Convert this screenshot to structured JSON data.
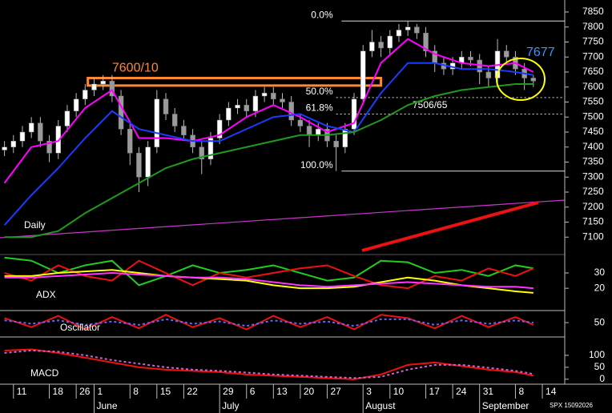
{
  "chart_data": {
    "type": "candlestick",
    "open": [
      7390,
      7400,
      7420,
      7450,
      7480,
      7420,
      7380,
      7470,
      7520,
      7560,
      7590,
      7610,
      7620,
      7570,
      7460,
      7380,
      7300,
      7400,
      7560,
      7510,
      7470,
      7440,
      7400,
      7360,
      7430,
      7490,
      7530,
      7540,
      7520,
      7570,
      7580,
      7560,
      7550,
      7490,
      7470,
      7440,
      7460,
      7420,
      7400,
      7460,
      7560,
      7720,
      7750,
      7730,
      7770,
      7790,
      7800,
      7780,
      7720,
      7680,
      7660,
      7680,
      7700,
      7690,
      7650,
      7630,
      7720,
      7700,
      7660,
      7630
    ],
    "high": [
      7420,
      7440,
      7470,
      7500,
      7500,
      7440,
      7490,
      7540,
      7580,
      7610,
      7630,
      7640,
      7640,
      7590,
      7480,
      7400,
      7420,
      7590,
      7580,
      7530,
      7490,
      7460,
      7420,
      7450,
      7510,
      7550,
      7560,
      7560,
      7590,
      7600,
      7600,
      7580,
      7570,
      7510,
      7490,
      7480,
      7480,
      7440,
      7480,
      7580,
      7740,
      7790,
      7770,
      7790,
      7810,
      7820,
      7810,
      7800,
      7740,
      7700,
      7700,
      7720,
      7720,
      7710,
      7670,
      7760,
      7740,
      7720,
      7680,
      7640
    ],
    "low": [
      7370,
      7380,
      7400,
      7430,
      7400,
      7350,
      7360,
      7450,
      7500,
      7540,
      7570,
      7590,
      7550,
      7440,
      7340,
      7250,
      7270,
      7380,
      7490,
      7450,
      7420,
      7380,
      7310,
      7340,
      7410,
      7470,
      7510,
      7500,
      7500,
      7550,
      7540,
      7530,
      7470,
      7450,
      7400,
      7420,
      7400,
      7320,
      7380,
      7440,
      7540,
      7700,
      7700,
      7710,
      7750,
      7770,
      7760,
      7700,
      7650,
      7640,
      7640,
      7660,
      7670,
      7610,
      7600,
      7610,
      7680,
      7640,
      7590,
      7600
    ],
    "close": [
      7400,
      7420,
      7450,
      7480,
      7420,
      7380,
      7470,
      7520,
      7560,
      7590,
      7610,
      7620,
      7570,
      7460,
      7380,
      7300,
      7400,
      7560,
      7510,
      7470,
      7440,
      7400,
      7360,
      7430,
      7490,
      7530,
      7540,
      7520,
      7570,
      7580,
      7560,
      7550,
      7490,
      7470,
      7440,
      7460,
      7420,
      7400,
      7460,
      7560,
      7720,
      7750,
      7730,
      7770,
      7790,
      7800,
      7780,
      7720,
      7680,
      7660,
      7680,
      7700,
      7690,
      7650,
      7630,
      7720,
      7700,
      7660,
      7630,
      7620
    ],
    "up_color": "#ffffff",
    "down_color": "#9a9a9a",
    "xlim": [
      -0.5,
      62.5
    ],
    "xticks": [
      {
        "value": 1,
        "label": "11"
      },
      {
        "value": 5,
        "label": "18"
      },
      {
        "value": 8,
        "label": "26"
      },
      {
        "value": 10,
        "label": "1"
      },
      {
        "value": 14,
        "label": "8"
      },
      {
        "value": 17,
        "label": "15"
      },
      {
        "value": 20,
        "label": "22"
      },
      {
        "value": 24,
        "label": "29"
      },
      {
        "value": 27,
        "label": "6"
      },
      {
        "value": 30,
        "label": "13"
      },
      {
        "value": 33,
        "label": "20"
      },
      {
        "value": 36,
        "label": "27"
      },
      {
        "value": 40,
        "label": "3"
      },
      {
        "value": 43,
        "label": "10"
      },
      {
        "value": 47,
        "label": "17"
      },
      {
        "value": 50,
        "label": "24"
      },
      {
        "value": 53,
        "label": "31"
      },
      {
        "value": 57,
        "label": "8"
      },
      {
        "value": 60,
        "label": "14"
      }
    ],
    "months": [
      {
        "value": 10,
        "label": "June"
      },
      {
        "value": 24,
        "label": "July"
      },
      {
        "value": 40,
        "label": "August"
      },
      {
        "value": 53,
        "label": "September"
      }
    ],
    "ylim": [
      7050,
      7890
    ],
    "yticks": [
      7100,
      7150,
      7200,
      7250,
      7300,
      7350,
      7400,
      7450,
      7500,
      7550,
      7600,
      7650,
      7700,
      7750,
      7800,
      7850
    ],
    "line_x": [
      0,
      3,
      6,
      9,
      12,
      15,
      18,
      21,
      24,
      27,
      30,
      33,
      36,
      39,
      42,
      45,
      48,
      51,
      54,
      57,
      59
    ],
    "lines": [
      {
        "color": "#ff00ff",
        "values": [
          7280,
          7400,
          7420,
          7530,
          7590,
          7430,
          7430,
          7420,
          7440,
          7500,
          7540,
          7500,
          7450,
          7480,
          7680,
          7760,
          7710,
          7680,
          7670,
          7680,
          7650
        ]
      },
      {
        "color": "#1a3cff",
        "values": [
          7140,
          7240,
          7330,
          7430,
          7520,
          7460,
          7440,
          7420,
          7420,
          7460,
          7500,
          7510,
          7470,
          7450,
          7580,
          7680,
          7680,
          7660,
          7660,
          7650,
          7640
        ]
      },
      {
        "color": "#1f9a1f",
        "values": [
          7100,
          7100,
          7120,
          7180,
          7230,
          7280,
          7330,
          7360,
          7380,
          7400,
          7420,
          7440,
          7440,
          7450,
          7490,
          7540,
          7570,
          7590,
          7600,
          7610,
          7610
        ]
      }
    ],
    "fib": [
      {
        "label": "0.0%",
        "value": 7820
      },
      {
        "label": "50.0%",
        "value": 7565
      },
      {
        "label": "61.8%",
        "value": 7510
      },
      {
        "label": "100.0%",
        "value": 7320
      }
    ],
    "resistance": {
      "label": "7600/10",
      "values": [
        7605,
        7630
      ]
    },
    "notes": {
      "support": "7506/65",
      "last": "7677",
      "period": "Daily"
    },
    "panels": [
      {
        "label": "ADX",
        "ylim": [
          7,
          41
        ],
        "yticks": [
          20,
          30
        ],
        "series": [
          {
            "color": "#22cc22",
            "values": [
              40,
              38,
              30,
              35,
              38,
              22,
              28,
              35,
              30,
              32,
              35,
              30,
              25,
              27,
              38,
              37,
              30,
              32,
              28,
              35,
              33
            ]
          },
          {
            "color": "#ee1111",
            "values": [
              30,
              25,
              35,
              28,
              25,
              38,
              30,
              22,
              30,
              27,
              30,
              33,
              35,
              28,
              22,
              20,
              28,
              25,
              33,
              28,
              33
            ]
          },
          {
            "color": "#ffff00",
            "values": [
              28,
              28,
              30,
              31,
              32,
              30,
              28,
              27,
              26,
              25,
              22,
              20,
              20,
              21,
              24,
              27,
              25,
              22,
              20,
              18,
              17
            ]
          },
          {
            "color": "#ff33ff",
            "values": [
              27,
              27,
              28,
              29,
              30,
              29,
              28,
              27,
              27,
              26,
              24,
              22,
              21,
              22,
              23,
              24,
              23,
              22,
              21,
              21,
              20
            ]
          }
        ]
      },
      {
        "label": "Oscillator",
        "ylim": [
          -10,
          100
        ],
        "yticks": [
          50
        ],
        "series": [
          {
            "color": "#ee1111",
            "values": [
              70,
              30,
              80,
              20,
              75,
              25,
              85,
              30,
              70,
              20,
              80,
              30,
              75,
              20,
              85,
              70,
              25,
              80,
              30,
              75,
              40
            ]
          },
          {
            "color": "#6666ff",
            "dashed": true,
            "values": [
              60,
              45,
              60,
              40,
              55,
              40,
              65,
              45,
              55,
              35,
              60,
              45,
              55,
              35,
              65,
              65,
              40,
              60,
              45,
              60,
              50
            ]
          }
        ]
      },
      {
        "label": "MACD",
        "ylim": [
          -14,
          170
        ],
        "yticks": [
          0,
          50,
          100
        ],
        "series": [
          {
            "color": "#ee1111",
            "values": [
              120,
              125,
              110,
              90,
              70,
              50,
              40,
              35,
              30,
              20,
              15,
              10,
              5,
              0,
              20,
              60,
              70,
              55,
              40,
              30,
              15
            ]
          },
          {
            "color": "#cc66cc",
            "dashed": true,
            "values": [
              110,
              120,
              115,
              100,
              80,
              65,
              50,
              40,
              35,
              28,
              20,
              15,
              10,
              5,
              10,
              40,
              60,
              60,
              48,
              35,
              22
            ]
          }
        ]
      }
    ],
    "footer": "SPX 15092026"
  }
}
